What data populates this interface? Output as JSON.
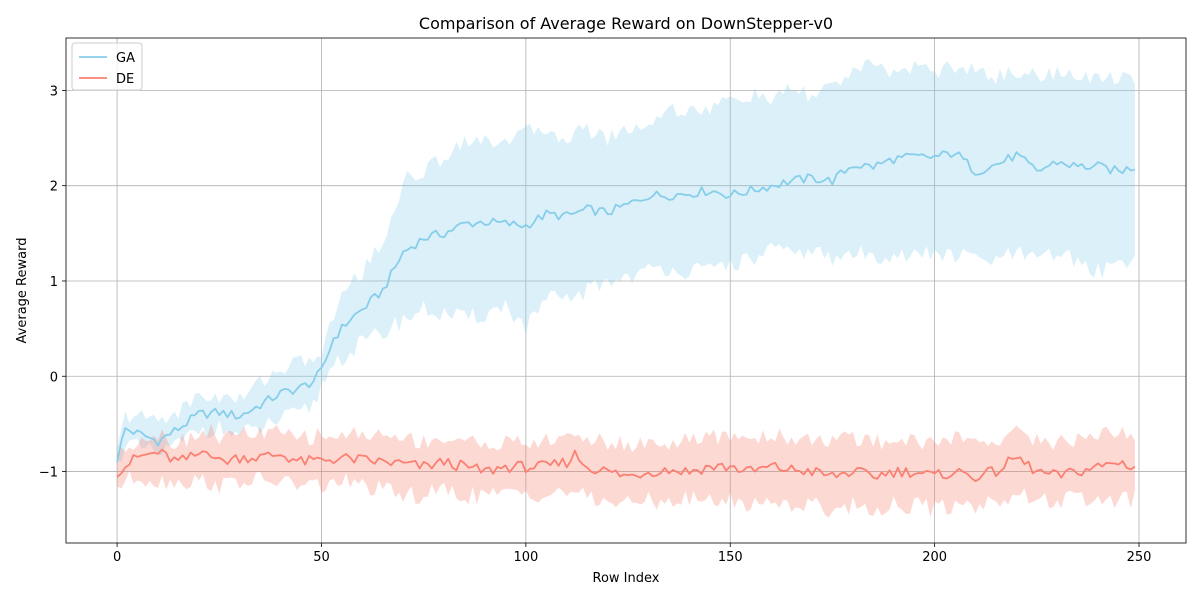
{
  "chart_data": {
    "type": "line",
    "title": "Comparison of Average Reward on DownStepper-v0",
    "xlabel": "Row Index",
    "ylabel": "Average Reward",
    "xlim": [
      -12.5,
      261.5
    ],
    "ylim": [
      -1.75,
      3.55
    ],
    "xticks": [
      0,
      50,
      100,
      150,
      200,
      250
    ],
    "xtick_labels": [
      "0",
      "50",
      "100",
      "150",
      "200",
      "250"
    ],
    "yticks": [
      -1,
      0,
      1,
      2,
      3
    ],
    "ytick_labels": [
      "−1",
      "0",
      "1",
      "2",
      "3"
    ],
    "grid": true,
    "legend": "top-left",
    "colors": {
      "GA": "#87ceeb",
      "DE": "#fa8072",
      "grid": "#b0b0b0"
    },
    "x_points": 250,
    "series": [
      {
        "name": "GA",
        "color": "#87ceeb",
        "knots_x": [
          0,
          2,
          5,
          10,
          15,
          20,
          25,
          30,
          35,
          40,
          45,
          48,
          50,
          53,
          57,
          60,
          65,
          70,
          75,
          80,
          85,
          90,
          95,
          100,
          105,
          110,
          115,
          120,
          125,
          130,
          135,
          140,
          145,
          150,
          155,
          160,
          165,
          170,
          175,
          180,
          185,
          190,
          195,
          200,
          205,
          210,
          215,
          220,
          225,
          230,
          235,
          240,
          245,
          249
        ],
        "knots_mean": [
          -0.87,
          -0.55,
          -0.6,
          -0.68,
          -0.55,
          -0.4,
          -0.38,
          -0.42,
          -0.3,
          -0.18,
          -0.12,
          -0.05,
          0.05,
          0.4,
          0.6,
          0.7,
          0.9,
          1.3,
          1.45,
          1.5,
          1.6,
          1.62,
          1.6,
          1.58,
          1.7,
          1.68,
          1.75,
          1.72,
          1.8,
          1.9,
          1.9,
          1.92,
          1.95,
          1.9,
          1.95,
          2.0,
          2.05,
          2.08,
          2.05,
          2.22,
          2.2,
          2.28,
          2.3,
          2.3,
          2.35,
          2.15,
          2.22,
          2.32,
          2.15,
          2.25,
          2.2,
          2.2,
          2.15,
          2.2
        ],
        "knots_lower": [
          -0.92,
          -0.7,
          -0.75,
          -0.82,
          -0.72,
          -0.55,
          -0.55,
          -0.62,
          -0.55,
          -0.45,
          -0.4,
          -0.3,
          -0.1,
          0.15,
          0.25,
          0.35,
          0.45,
          0.6,
          0.7,
          0.65,
          0.6,
          0.65,
          0.75,
          0.5,
          0.8,
          0.8,
          0.9,
          1.0,
          1.05,
          1.1,
          1.15,
          1.1,
          1.1,
          1.2,
          1.2,
          1.35,
          1.25,
          1.35,
          1.2,
          1.3,
          1.25,
          1.3,
          1.25,
          1.3,
          1.25,
          1.25,
          1.2,
          1.3,
          1.2,
          1.3,
          1.2,
          1.1,
          1.2,
          1.25
        ],
        "knots_upper": [
          -0.8,
          -0.42,
          -0.42,
          -0.45,
          -0.38,
          -0.2,
          -0.22,
          -0.25,
          -0.05,
          0.08,
          0.15,
          0.2,
          0.2,
          0.65,
          1.0,
          1.1,
          1.4,
          2.05,
          2.15,
          2.3,
          2.5,
          2.45,
          2.5,
          2.55,
          2.6,
          2.5,
          2.6,
          2.5,
          2.6,
          2.65,
          2.8,
          2.8,
          2.8,
          2.9,
          2.95,
          2.9,
          3.0,
          2.95,
          3.05,
          3.2,
          3.25,
          3.2,
          3.25,
          3.2,
          3.25,
          3.2,
          3.15,
          3.2,
          3.15,
          3.2,
          3.1,
          3.15,
          3.15,
          3.15
        ]
      },
      {
        "name": "DE",
        "color": "#fa8072",
        "knots_x": [
          0,
          5,
          10,
          15,
          20,
          22,
          25,
          30,
          35,
          40,
          45,
          50,
          55,
          60,
          65,
          70,
          75,
          80,
          85,
          90,
          95,
          100,
          105,
          110,
          112,
          115,
          120,
          125,
          130,
          135,
          140,
          145,
          150,
          155,
          160,
          165,
          170,
          175,
          180,
          185,
          190,
          195,
          200,
          205,
          210,
          215,
          220,
          225,
          230,
          235,
          240,
          245,
          249
        ],
        "knots_mean": [
          -1.0,
          -0.85,
          -0.8,
          -0.9,
          -0.82,
          -0.75,
          -0.9,
          -0.85,
          -0.85,
          -0.82,
          -0.9,
          -0.88,
          -0.86,
          -0.88,
          -0.9,
          -0.92,
          -0.95,
          -0.9,
          -0.95,
          -1.0,
          -0.95,
          -0.95,
          -0.95,
          -0.9,
          -0.82,
          -0.95,
          -1.0,
          -1.05,
          -1.0,
          -0.98,
          -1.0,
          -0.95,
          -0.95,
          -1.0,
          -0.95,
          -0.98,
          -1.0,
          -1.05,
          -1.0,
          -1.05,
          -1.0,
          -1.0,
          -1.05,
          -1.0,
          -1.05,
          -1.0,
          -0.85,
          -1.0,
          -1.05,
          -1.0,
          -0.95,
          -0.9,
          -0.95
        ],
        "knots_lower": [
          -1.15,
          -1.05,
          -1.1,
          -1.1,
          -1.1,
          -1.1,
          -1.15,
          -1.1,
          -1.1,
          -1.1,
          -1.15,
          -1.15,
          -1.1,
          -1.15,
          -1.2,
          -1.25,
          -1.25,
          -1.2,
          -1.25,
          -1.25,
          -1.25,
          -1.2,
          -1.25,
          -1.2,
          -1.2,
          -1.3,
          -1.3,
          -1.35,
          -1.3,
          -1.3,
          -1.3,
          -1.3,
          -1.3,
          -1.35,
          -1.3,
          -1.35,
          -1.35,
          -1.4,
          -1.35,
          -1.4,
          -1.35,
          -1.35,
          -1.4,
          -1.35,
          -1.35,
          -1.3,
          -1.25,
          -1.3,
          -1.3,
          -1.3,
          -1.3,
          -1.3,
          -1.3
        ],
        "knots_upper": [
          -0.85,
          -0.65,
          -0.6,
          -0.7,
          -0.6,
          -0.55,
          -0.65,
          -0.6,
          -0.6,
          -0.6,
          -0.65,
          -0.62,
          -0.62,
          -0.6,
          -0.62,
          -0.65,
          -0.68,
          -0.65,
          -0.68,
          -0.7,
          -0.7,
          -0.7,
          -0.68,
          -0.65,
          -0.6,
          -0.65,
          -0.7,
          -0.72,
          -0.7,
          -0.7,
          -0.68,
          -0.65,
          -0.62,
          -0.65,
          -0.62,
          -0.65,
          -0.65,
          -0.68,
          -0.65,
          -0.7,
          -0.65,
          -0.68,
          -0.7,
          -0.65,
          -0.68,
          -0.65,
          -0.6,
          -0.65,
          -0.7,
          -0.65,
          -0.6,
          -0.6,
          -0.6
        ]
      }
    ]
  }
}
